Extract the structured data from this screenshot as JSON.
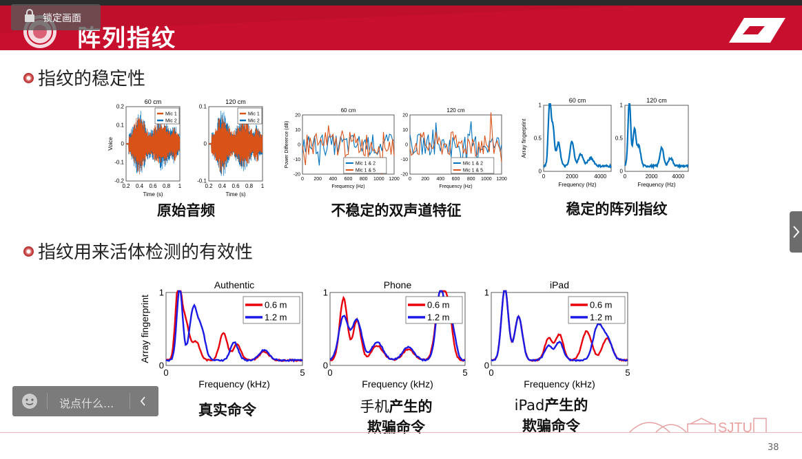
{
  "toolbar": {
    "lock_label": "锁定画面"
  },
  "slide": {
    "title": "阵列指纹",
    "bullet1": "指纹的稳定性",
    "bullet2": "指纹用来活体检测的有效性",
    "page_number": "38",
    "logo_text": "SJTU"
  },
  "captions": {
    "raw_audio": "原始音频",
    "unstable": "不稳定的双声道特征",
    "stable": "稳定的阵列指纹",
    "real_cmd": "真实命令",
    "phone_line1_pre": "手机",
    "phone_line1_bold": "产生的",
    "phone_line2": "欺骗命令",
    "ipad_line1_pre": "iPad",
    "ipad_line1_bold": "产生的",
    "ipad_line2": "欺骗命令"
  },
  "chat": {
    "placeholder": "说点什么..."
  },
  "colors": {
    "brand_red": "#c8102e",
    "mic1": "#d95319",
    "mic2": "#0072bd",
    "red": "#e8000b",
    "blue": "#1a1ae6"
  },
  "chart_data": [
    {
      "type": "line",
      "title": "60 cm",
      "xlabel": "Time (s)",
      "ylabel": "Voice",
      "x_ticks": [
        "0.2",
        "0.4",
        "0.6",
        "0.8",
        "1"
      ],
      "y_ticks": [
        "0.2",
        "0.1",
        "0",
        "-0.1",
        "-0.2"
      ],
      "legend": [
        "Mic 1",
        "Mic 2"
      ]
    },
    {
      "type": "line",
      "title": "120 cm",
      "xlabel": "Time (s)",
      "ylabel": "",
      "x_ticks": [
        "0.2",
        "0.4",
        "0.6",
        "0.8",
        "1"
      ],
      "y_ticks": [
        "0.1",
        "0",
        "-0.1"
      ],
      "legend": [
        "Mic 1",
        "Mic 2"
      ]
    },
    {
      "type": "line",
      "title": "60 cm",
      "xlabel": "Frequency (Hz)",
      "ylabel": "Power Difference (dB)",
      "x_ticks": [
        "0",
        "200",
        "400",
        "600",
        "800",
        "1000",
        "1200"
      ],
      "y_ticks": [
        "20",
        "10",
        "0",
        "-10",
        "-20"
      ],
      "legend": [
        "Mic 1 & 2",
        "Mic 1 & 5"
      ]
    },
    {
      "type": "line",
      "title": "120 cm",
      "xlabel": "Frequency (Hz)",
      "ylabel": "",
      "x_ticks": [
        "0",
        "200",
        "400",
        "600",
        "800",
        "1000",
        "1200"
      ],
      "y_ticks": [
        "20",
        "10",
        "0",
        "-10",
        "-20"
      ],
      "legend": [
        "Mic 1 & 2",
        "Mic 1 & 5"
      ]
    },
    {
      "type": "line",
      "title": "60 cm",
      "xlabel": "Frequency (Hz)",
      "ylabel": "Array fingerprint",
      "x_ticks": [
        "0",
        "2000",
        "4000"
      ],
      "y_ticks": [
        "1",
        "0.5",
        "0"
      ]
    },
    {
      "type": "line",
      "title": "120 cm",
      "xlabel": "Frequency (Hz)",
      "ylabel": "",
      "x_ticks": [
        "0",
        "2000",
        "4000"
      ],
      "y_ticks": [
        "1",
        "0.5",
        "0"
      ]
    },
    {
      "type": "line",
      "title": "Authentic",
      "xlabel": "Frequency (kHz)",
      "ylabel": "Array fingerprint",
      "x_ticks": [
        "0",
        "5"
      ],
      "y_ticks": [
        "1",
        "0"
      ],
      "legend": [
        "0.6 m",
        "1.2 m"
      ]
    },
    {
      "type": "line",
      "title": "Phone",
      "xlabel": "Frequency (kHz)",
      "ylabel": "",
      "x_ticks": [
        "0",
        "5"
      ],
      "y_ticks": [
        "1",
        "0"
      ],
      "legend": [
        "0.6 m",
        "1.2 m"
      ]
    },
    {
      "type": "line",
      "title": "iPad",
      "xlabel": "Frequency (kHz)",
      "ylabel": "",
      "x_ticks": [
        "0",
        "5"
      ],
      "y_ticks": [
        "1",
        "0"
      ],
      "legend": [
        "0.6 m",
        "1.2 m"
      ]
    }
  ]
}
